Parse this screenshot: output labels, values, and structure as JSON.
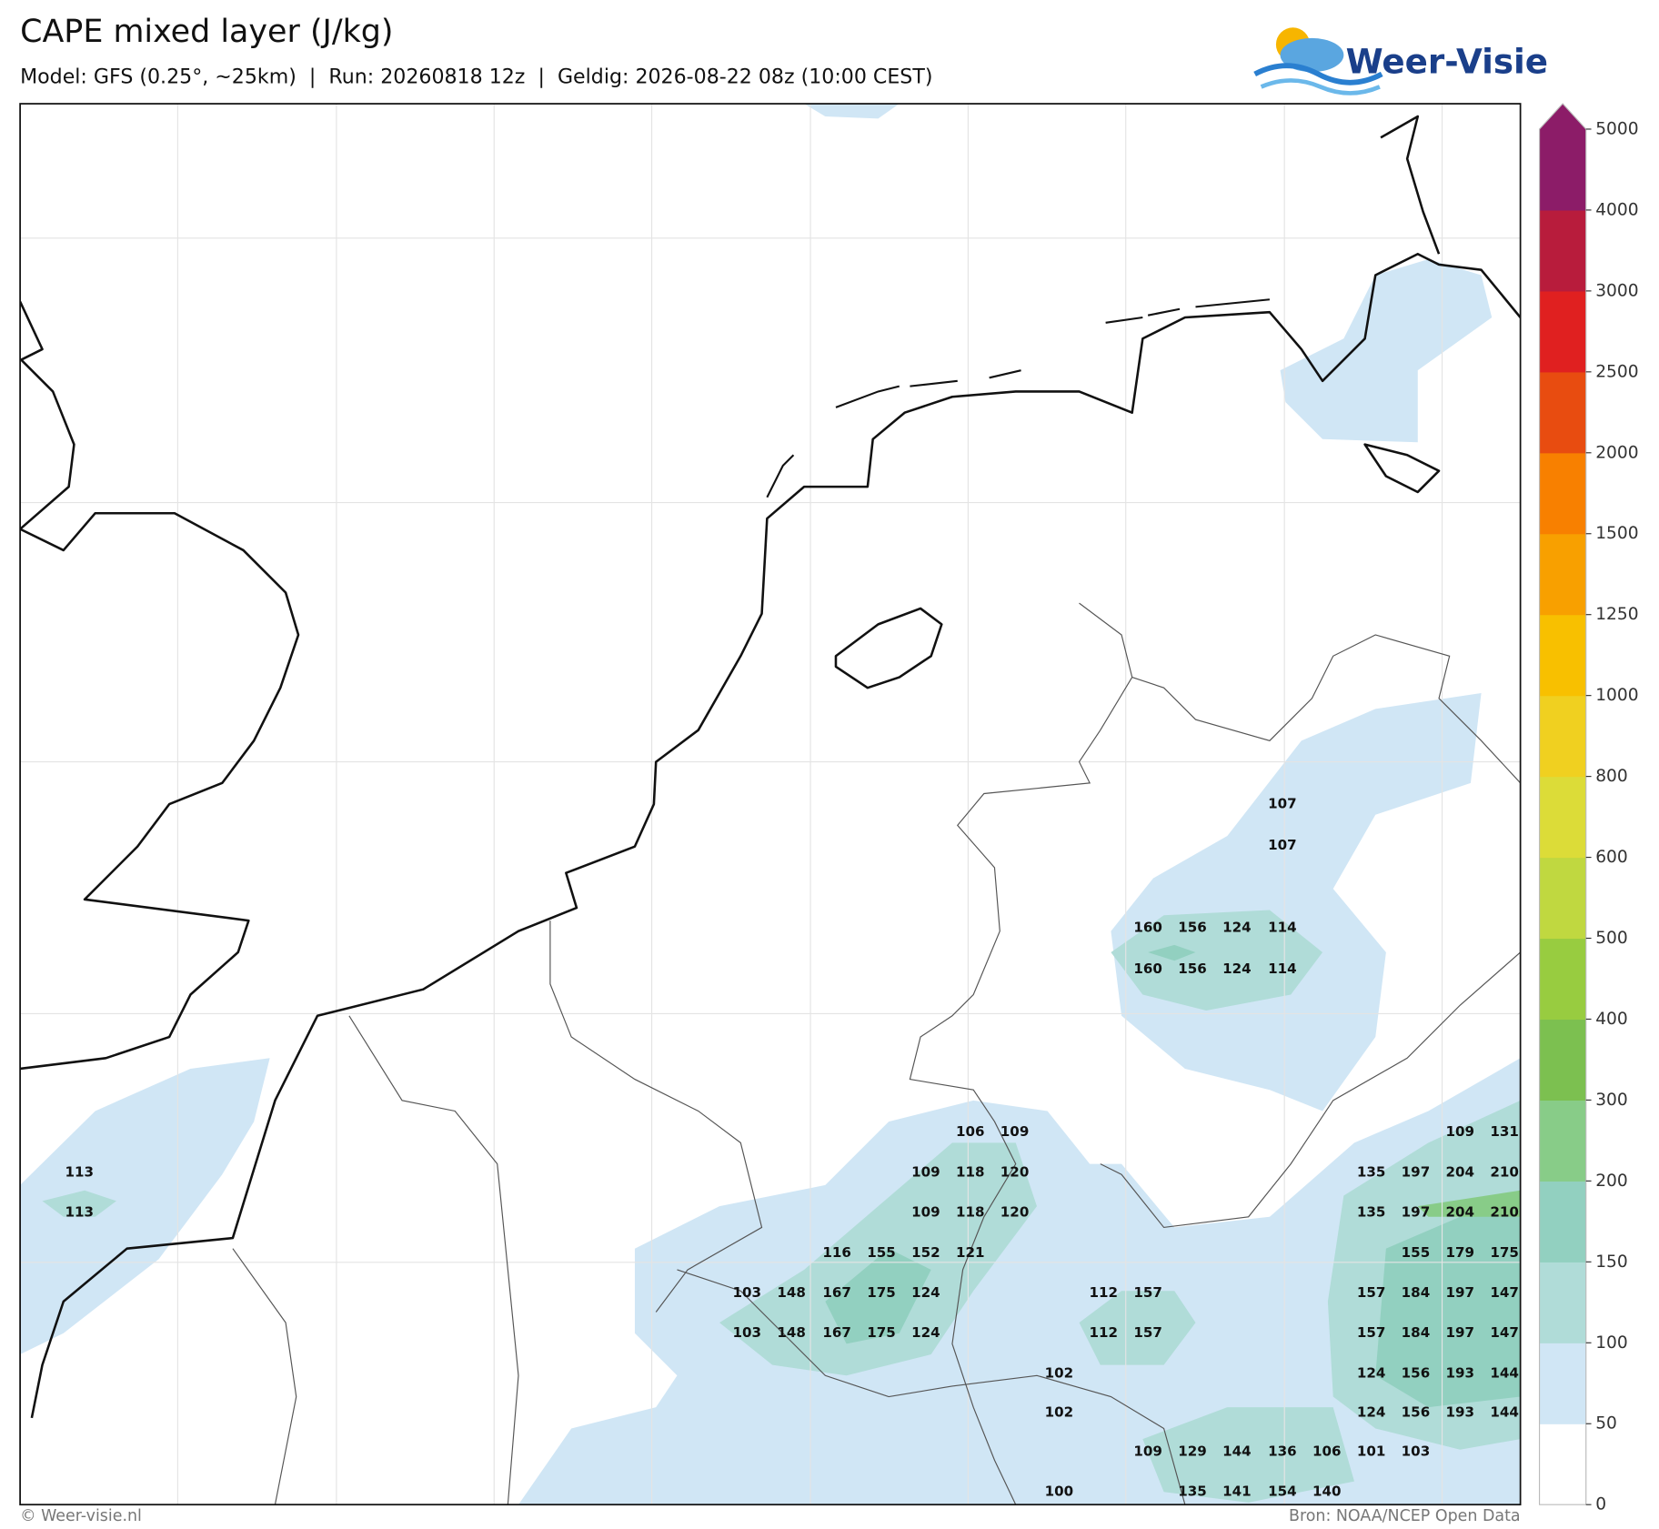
{
  "header": {
    "title": "CAPE mixed layer (J/kg)",
    "subtitle": "Model: GFS (0.25°, ~25km)  |  Run: 20260818 12z  |  Geldig: 2026-08-22 08z (10:00 CEST)",
    "logo": "Weer-Visie"
  },
  "colorbar": {
    "ticks": [
      0,
      50,
      100,
      150,
      200,
      300,
      400,
      500,
      600,
      800,
      1000,
      1250,
      1500,
      2000,
      2500,
      3000,
      4000,
      5000
    ],
    "colors": [
      "#ffffff",
      "#d0e6f5",
      "#b0dcd8",
      "#92d0c0",
      "#88cc88",
      "#7cc050",
      "#98cc40",
      "#c0d840",
      "#dcdc38",
      "#f0d020",
      "#f8c000",
      "#f8a000",
      "#f88000",
      "#e84c10",
      "#e02020",
      "#b81c3c",
      "#8c1c68"
    ],
    "extend_color": "#8c1c68"
  },
  "map_labels": [
    107,
    107,
    160,
    156,
    124,
    114,
    160,
    156,
    124,
    114,
    113,
    113,
    106,
    109,
    109,
    118,
    120,
    109,
    118,
    120,
    116,
    155,
    152,
    121,
    103,
    148,
    167,
    175,
    124,
    103,
    148,
    167,
    175,
    124,
    112,
    157,
    112,
    157,
    102,
    102,
    100,
    109,
    129,
    144,
    136,
    106,
    101,
    103,
    135,
    141,
    154,
    140,
    109,
    131,
    135,
    197,
    204,
    210,
    135,
    197,
    204,
    210,
    155,
    179,
    175,
    157,
    184,
    197,
    147,
    157,
    184,
    197,
    147,
    124,
    156,
    193,
    144,
    124,
    156,
    193,
    144
  ],
  "footer": {
    "left": "© Weer-visie.nl",
    "right": "Bron: NOAA/NCEP Open Data"
  }
}
